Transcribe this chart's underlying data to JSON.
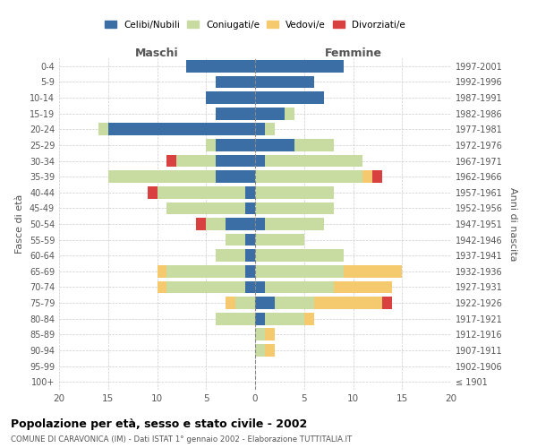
{
  "age_groups": [
    "0-4",
    "5-9",
    "10-14",
    "15-19",
    "20-24",
    "25-29",
    "30-34",
    "35-39",
    "40-44",
    "45-49",
    "50-54",
    "55-59",
    "60-64",
    "65-69",
    "70-74",
    "75-79",
    "80-84",
    "85-89",
    "90-94",
    "95-99",
    "100+"
  ],
  "birth_years": [
    "1997-2001",
    "1992-1996",
    "1987-1991",
    "1982-1986",
    "1977-1981",
    "1972-1976",
    "1967-1971",
    "1962-1966",
    "1957-1961",
    "1952-1956",
    "1947-1951",
    "1942-1946",
    "1937-1941",
    "1932-1936",
    "1927-1931",
    "1922-1926",
    "1917-1921",
    "1912-1916",
    "1907-1911",
    "1902-1906",
    "≤ 1901"
  ],
  "males": {
    "celibi": [
      7,
      4,
      5,
      4,
      15,
      4,
      4,
      4,
      1,
      1,
      3,
      1,
      1,
      1,
      1,
      0,
      0,
      0,
      0,
      0,
      0
    ],
    "coniugati": [
      0,
      0,
      0,
      0,
      1,
      1,
      4,
      11,
      9,
      8,
      2,
      2,
      3,
      8,
      8,
      2,
      4,
      0,
      0,
      0,
      0
    ],
    "vedovi": [
      0,
      0,
      0,
      0,
      0,
      0,
      0,
      0,
      0,
      0,
      0,
      0,
      0,
      1,
      1,
      1,
      0,
      0,
      0,
      0,
      0
    ],
    "divorziati": [
      0,
      0,
      0,
      0,
      0,
      0,
      1,
      0,
      1,
      0,
      1,
      0,
      0,
      0,
      0,
      0,
      0,
      0,
      0,
      0,
      0
    ]
  },
  "females": {
    "nubili": [
      9,
      6,
      7,
      3,
      1,
      4,
      1,
      0,
      0,
      0,
      1,
      0,
      0,
      0,
      1,
      2,
      1,
      0,
      0,
      0,
      0
    ],
    "coniugate": [
      0,
      0,
      0,
      1,
      1,
      4,
      10,
      11,
      8,
      8,
      6,
      5,
      9,
      9,
      7,
      4,
      4,
      1,
      1,
      0,
      0
    ],
    "vedove": [
      0,
      0,
      0,
      0,
      0,
      0,
      0,
      1,
      0,
      0,
      0,
      0,
      0,
      6,
      6,
      7,
      1,
      1,
      1,
      0,
      0
    ],
    "divorziate": [
      0,
      0,
      0,
      0,
      0,
      0,
      0,
      1,
      0,
      0,
      0,
      0,
      0,
      0,
      0,
      1,
      0,
      0,
      0,
      0,
      0
    ]
  },
  "color_celibi": "#3a6ea5",
  "color_coniugati": "#c8dba0",
  "color_vedovi": "#f5c96e",
  "color_divorziati": "#d94040",
  "xlim": [
    -20,
    20
  ],
  "xticks": [
    -20,
    -15,
    -10,
    -5,
    0,
    5,
    10,
    15,
    20
  ],
  "xticklabels": [
    "20",
    "15",
    "10",
    "5",
    "0",
    "5",
    "10",
    "15",
    "20"
  ],
  "title_main": "Popolazione per età, sesso e stato civile - 2002",
  "title_sub": "COMUNE DI CARAVONICA (IM) - Dati ISTAT 1° gennaio 2002 - Elaborazione TUTTITALIA.IT",
  "ylabel_left": "Fasce di età",
  "ylabel_right": "Anni di nascita",
  "label_maschi": "Maschi",
  "label_femmine": "Femmine",
  "legend_celibi": "Celibi/Nubili",
  "legend_coniugati": "Coniugati/e",
  "legend_vedovi": "Vedovi/e",
  "legend_divorziati": "Divorziati/e"
}
